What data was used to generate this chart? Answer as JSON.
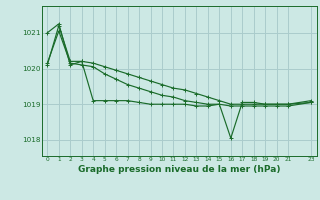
{
  "bg_color": "#cce8e4",
  "grid_color": "#aacccc",
  "line_color": "#1a6b2a",
  "xlabel": "Graphe pression niveau de la mer (hPa)",
  "xlabel_fontsize": 6.5,
  "ylim": [
    1017.55,
    1021.75
  ],
  "xlim": [
    -0.5,
    23.5
  ],
  "yticks": [
    1018,
    1019,
    1020,
    1021
  ],
  "xticks": [
    0,
    1,
    2,
    3,
    4,
    5,
    6,
    7,
    8,
    9,
    10,
    11,
    12,
    13,
    14,
    15,
    16,
    17,
    18,
    19,
    20,
    21,
    23
  ],
  "s1_x": [
    0,
    1,
    2,
    3,
    4,
    5,
    6,
    7,
    8,
    9,
    10,
    11,
    12,
    13,
    14,
    15,
    16,
    17,
    18,
    19,
    20,
    21,
    23
  ],
  "s1_y": [
    1021.0,
    1021.25,
    1020.1,
    1020.2,
    1019.1,
    1019.1,
    1019.1,
    1019.1,
    1019.05,
    1019.0,
    1019.0,
    1019.0,
    1019.0,
    1018.95,
    1018.95,
    1019.0,
    1018.05,
    1019.05,
    1019.05,
    1019.0,
    1019.0,
    1019.0,
    1019.05
  ],
  "s2_x": [
    0,
    1,
    2,
    3,
    4,
    5,
    6,
    7,
    8,
    9,
    10,
    11,
    12,
    13,
    14,
    15,
    16,
    17,
    18,
    19,
    20,
    21,
    23
  ],
  "s2_y": [
    1020.15,
    1021.05,
    1020.15,
    1020.1,
    1020.05,
    1019.85,
    1019.7,
    1019.55,
    1019.45,
    1019.35,
    1019.25,
    1019.2,
    1019.1,
    1019.05,
    1019.0,
    1019.0,
    1018.95,
    1018.95,
    1018.95,
    1018.95,
    1018.95,
    1018.95,
    1019.05
  ],
  "s3_x": [
    0,
    1,
    2,
    3,
    4,
    5,
    6,
    7,
    8,
    9,
    10,
    11,
    12,
    13,
    14,
    15,
    16,
    17,
    18,
    19,
    20,
    21,
    23
  ],
  "s3_y": [
    1020.1,
    1021.2,
    1020.2,
    1020.2,
    1020.15,
    1020.05,
    1019.95,
    1019.85,
    1019.75,
    1019.65,
    1019.55,
    1019.45,
    1019.4,
    1019.3,
    1019.2,
    1019.1,
    1019.0,
    1019.0,
    1019.0,
    1019.0,
    1019.0,
    1019.0,
    1019.1
  ]
}
